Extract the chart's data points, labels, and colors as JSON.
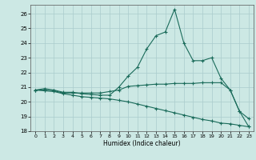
{
  "xlabel": "Humidex (Indice chaleur)",
  "background_color": "#cce8e4",
  "grid_color": "#aacccc",
  "line_color": "#1a6b5a",
  "xlim": [
    -0.5,
    23.5
  ],
  "ylim": [
    18.0,
    26.6
  ],
  "yticks": [
    18,
    19,
    20,
    21,
    22,
    23,
    24,
    25,
    26
  ],
  "xticks": [
    0,
    1,
    2,
    3,
    4,
    5,
    6,
    7,
    8,
    9,
    10,
    11,
    12,
    13,
    14,
    15,
    16,
    17,
    18,
    19,
    20,
    21,
    22,
    23
  ],
  "series": [
    {
      "x": [
        0,
        1,
        2,
        3,
        4,
        5,
        6,
        7,
        8,
        9,
        10,
        11,
        12,
        13,
        14,
        15,
        16,
        17,
        18,
        19,
        20,
        21,
        22,
        23
      ],
      "y": [
        20.8,
        20.9,
        20.8,
        20.65,
        20.65,
        20.55,
        20.5,
        20.45,
        20.45,
        21.0,
        21.75,
        22.35,
        23.6,
        24.5,
        24.75,
        26.3,
        24.0,
        22.8,
        22.8,
        23.0,
        21.6,
        20.8,
        19.35,
        18.85
      ],
      "marker": "+"
    },
    {
      "x": [
        0,
        1,
        2,
        3,
        4,
        5,
        6,
        7,
        8,
        9,
        10,
        11,
        12,
        13,
        14,
        15,
        16,
        17,
        18,
        19,
        20,
        21,
        22,
        23
      ],
      "y": [
        20.8,
        20.8,
        20.75,
        20.6,
        20.6,
        20.6,
        20.6,
        20.6,
        20.7,
        20.8,
        21.05,
        21.1,
        21.15,
        21.2,
        21.2,
        21.25,
        21.25,
        21.25,
        21.3,
        21.3,
        21.3,
        20.8,
        19.35,
        18.3
      ],
      "marker": "+"
    },
    {
      "x": [
        0,
        1,
        2,
        3,
        4,
        5,
        6,
        7,
        8,
        9,
        10,
        11,
        12,
        13,
        14,
        15,
        16,
        17,
        18,
        19,
        20,
        21,
        22,
        23
      ],
      "y": [
        20.8,
        20.75,
        20.7,
        20.55,
        20.45,
        20.35,
        20.3,
        20.25,
        20.2,
        20.1,
        20.0,
        19.85,
        19.7,
        19.55,
        19.4,
        19.25,
        19.1,
        18.95,
        18.8,
        18.7,
        18.55,
        18.5,
        18.4,
        18.3
      ],
      "marker": "+"
    }
  ]
}
